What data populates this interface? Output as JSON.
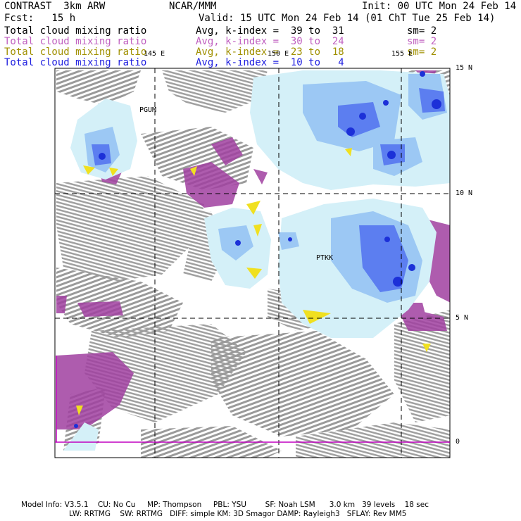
{
  "header": {
    "title": "CONTRAST  3km ARW",
    "center": "NCAR/MMM",
    "init": "Init: 00 UTC Mon 24 Feb 14",
    "fcst": "Fcst:   15 h",
    "valid": "Valid: 15 UTC Mon 24 Feb 14 (01 ChT Tue 25 Feb 14)"
  },
  "fields": [
    {
      "name": "Total cloud mixing ratio",
      "avg": "Avg, k-index =  39 to  31",
      "sm": "sm= 2",
      "color": "#000000"
    },
    {
      "name": "Total cloud mixing ratio",
      "avg": "Avg, k-index =  30 to  24",
      "sm": "sm= 2",
      "color": "#c060c0"
    },
    {
      "name": "Total cloud mixing ratio",
      "avg": "Avg, k-index =  23 to  18",
      "sm": "sm= 2",
      "color": "#a09000"
    },
    {
      "name": "Total cloud mixing ratio",
      "avg": "Avg, k-index =  10 to   4",
      "sm": "",
      "color": "#2020e0"
    }
  ],
  "map": {
    "lon_labels": [
      "145 E",
      "150 E",
      "155 E"
    ],
    "lat_labels": [
      "15 N",
      "10 N",
      "5 N",
      "0"
    ],
    "stations": [
      "PGUM",
      "PTKK"
    ]
  },
  "footer": {
    "line1": "Model Info: V3.5.1    CU: No Cu     MP: Thompson     PBL: YSU        SF: Noah LSM      3.0 km   39 levels    18 sec",
    "line2": "LW: RRTMG    SW: RRTMG   DIFF: simple KM: 3D Smagor DAMP: Rayleigh3   SFLAY: Rev MM5"
  },
  "colors": {
    "gray": "#9a9a9a",
    "purple": "#a040a0",
    "yellow": "#f0e020",
    "light_blue": "#d4f0f8",
    "mid_blue": "#9cc8f4",
    "blue": "#5c7ef0",
    "dark_blue": "#1c30d8",
    "grid": "#000000",
    "equator_line": "#c000c0"
  }
}
